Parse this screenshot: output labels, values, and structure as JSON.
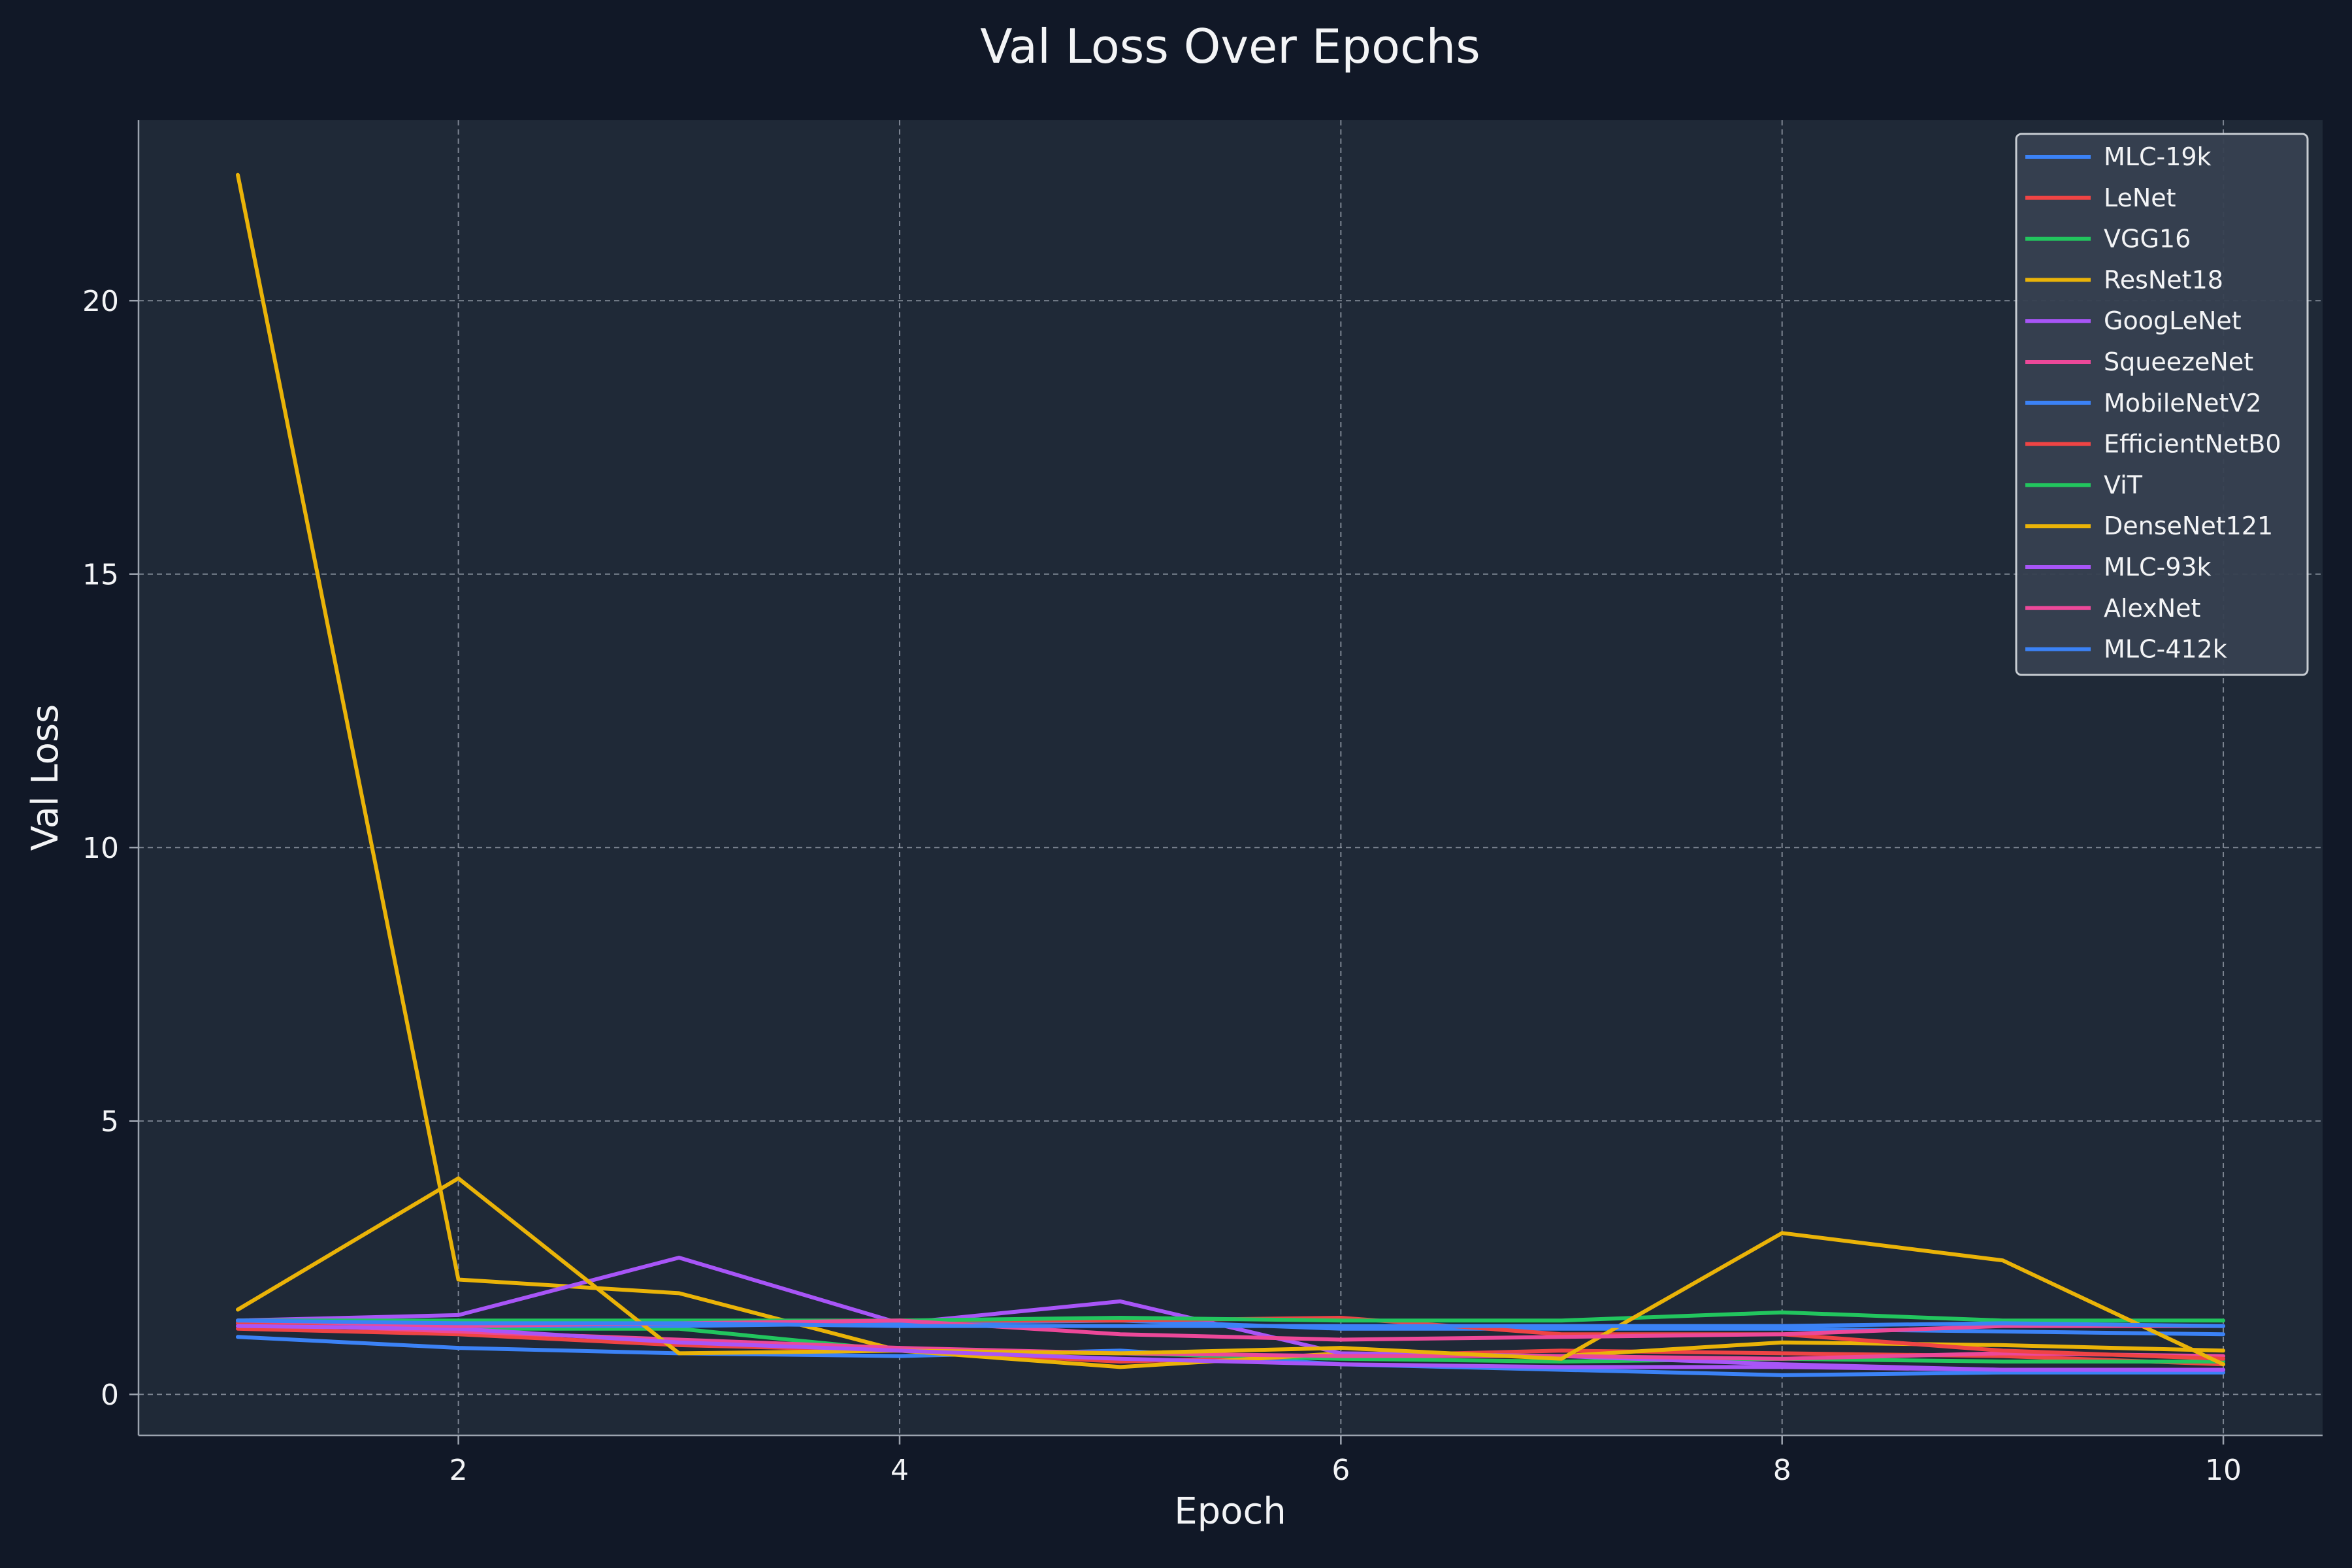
{
  "chart_data": {
    "type": "line",
    "title": "Val Loss Over Epochs",
    "xlabel": "Epoch",
    "ylabel": "Val Loss",
    "xlim": [
      0.55,
      10.45
    ],
    "ylim": [
      -0.75,
      23.3
    ],
    "xticks": [
      2,
      4,
      6,
      8,
      10
    ],
    "yticks": [
      0,
      5,
      10,
      15,
      20
    ],
    "grid": true,
    "legend_position": "top-right",
    "background": "#111827",
    "plot_background": "#1f2937",
    "x": [
      1,
      2,
      3,
      4,
      5,
      6,
      7,
      8,
      9,
      10
    ],
    "series": [
      {
        "name": "MLC-19k",
        "color": "#3b82f6",
        "values": [
          1.05,
          0.85,
          0.75,
          0.7,
          0.8,
          0.55,
          0.45,
          0.35,
          0.4,
          0.4
        ]
      },
      {
        "name": "LeNet",
        "color": "#ef4444",
        "values": [
          1.2,
          1.1,
          0.9,
          0.8,
          0.6,
          0.7,
          0.8,
          0.75,
          0.7,
          0.55
        ]
      },
      {
        "name": "VGG16",
        "color": "#22c55e",
        "values": [
          1.3,
          1.2,
          1.2,
          0.8,
          0.75,
          0.65,
          0.6,
          0.65,
          0.6,
          0.6
        ]
      },
      {
        "name": "ResNet18",
        "color": "#eab308",
        "values": [
          22.3,
          2.1,
          1.85,
          0.8,
          0.5,
          0.75,
          0.7,
          0.95,
          0.9,
          0.8
        ]
      },
      {
        "name": "GoogLeNet",
        "color": "#a855f7",
        "values": [
          1.35,
          1.45,
          2.5,
          1.3,
          1.7,
          0.75,
          0.7,
          0.55,
          0.45,
          0.45
        ]
      },
      {
        "name": "SqueezeNet",
        "color": "#ec4899",
        "values": [
          1.3,
          1.15,
          1.0,
          0.85,
          0.75,
          0.7,
          0.7,
          0.65,
          0.75,
          0.7
        ]
      },
      {
        "name": "MobileNetV2",
        "color": "#3b82f6",
        "values": [
          1.3,
          1.25,
          1.25,
          1.3,
          1.35,
          1.2,
          1.2,
          1.2,
          1.15,
          1.1
        ]
      },
      {
        "name": "EfficientNetB0",
        "color": "#ef4444",
        "values": [
          1.3,
          1.3,
          1.3,
          1.35,
          1.35,
          1.4,
          1.1,
          1.1,
          0.8,
          0.65
        ]
      },
      {
        "name": "ViT",
        "color": "#22c55e",
        "values": [
          1.35,
          1.35,
          1.35,
          1.35,
          1.4,
          1.35,
          1.35,
          1.5,
          1.35,
          1.35
        ]
      },
      {
        "name": "DenseNet121",
        "color": "#eab308",
        "values": [
          1.55,
          3.95,
          0.75,
          0.8,
          0.75,
          0.85,
          0.65,
          2.95,
          2.45,
          0.55
        ]
      },
      {
        "name": "MLC-93k",
        "color": "#a855f7",
        "values": [
          1.25,
          1.2,
          0.95,
          0.8,
          0.65,
          0.55,
          0.5,
          0.5,
          0.45,
          0.45
        ]
      },
      {
        "name": "AlexNet",
        "color": "#ec4899",
        "values": [
          1.35,
          1.25,
          1.3,
          1.35,
          1.1,
          1.0,
          1.05,
          1.1,
          1.25,
          1.25
        ]
      },
      {
        "name": "MLC-412k",
        "color": "#3b82f6",
        "values": [
          1.35,
          1.3,
          1.3,
          1.25,
          1.25,
          1.25,
          1.25,
          1.25,
          1.3,
          1.25
        ]
      }
    ]
  }
}
